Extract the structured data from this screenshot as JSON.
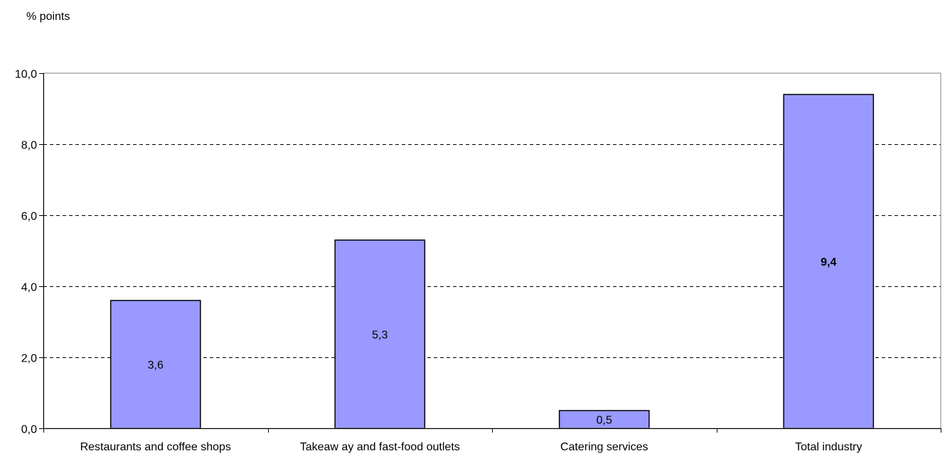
{
  "chart_data": {
    "type": "bar",
    "title": "",
    "ylabel": "% points",
    "xlabel": "",
    "categories": [
      "Restaurants and coffee shops",
      "Takeaw ay and fast-food outlets",
      "Catering services",
      "Total industry"
    ],
    "values": [
      3.6,
      5.3,
      0.5,
      9.4
    ],
    "value_labels": [
      "3,6",
      "5,3",
      "0,5",
      "9,4"
    ],
    "emphasized_labels": [
      false,
      false,
      false,
      true
    ],
    "ylim": [
      0,
      10
    ],
    "yticks": [
      0,
      2,
      4,
      6,
      8,
      10
    ],
    "ytick_labels": [
      "0,0",
      "2,0",
      "4,0",
      "6,0",
      "8,0",
      "10,0"
    ],
    "grid": true,
    "grid_style": "dashed",
    "legend": "none",
    "colors": {
      "bar_fill": "#9999ff",
      "bar_stroke": "#000000",
      "grid": "#000000",
      "axis": "#808080",
      "text": "#000000"
    }
  }
}
